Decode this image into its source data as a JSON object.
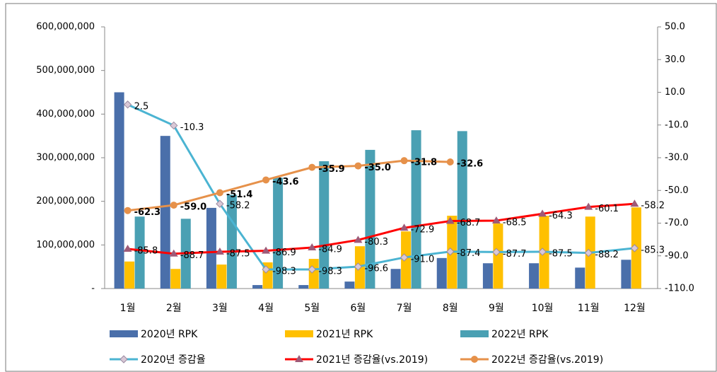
{
  "chart_data": {
    "type": "combo",
    "categories": [
      "1월",
      "2월",
      "3월",
      "4월",
      "5월",
      "6월",
      "7월",
      "8월",
      "9월",
      "10월",
      "11월",
      "12월"
    ],
    "ylim": [
      0,
      600000000
    ],
    "yticks": [
      {
        "value": 0,
        "label": "-"
      },
      {
        "value": 100000000,
        "label": "100,000,000"
      },
      {
        "value": 200000000,
        "label": "200,000,000"
      },
      {
        "value": 300000000,
        "label": "300,000,000"
      },
      {
        "value": 400000000,
        "label": "400,000,000"
      },
      {
        "value": 500000000,
        "label": "500,000,000"
      },
      {
        "value": 600000000,
        "label": "600,000,000"
      }
    ],
    "y2lim": [
      -110,
      50
    ],
    "y2ticks": [
      {
        "value": -110,
        "label": "-110.0"
      },
      {
        "value": -90,
        "label": "-90.0"
      },
      {
        "value": -70,
        "label": "-70.0"
      },
      {
        "value": -50,
        "label": "-50.0"
      },
      {
        "value": -30,
        "label": "-30.0"
      },
      {
        "value": -10,
        "label": "-10.0"
      },
      {
        "value": 10,
        "label": "10.0"
      },
      {
        "value": 30,
        "label": "30.0"
      },
      {
        "value": 50,
        "label": "50.0"
      }
    ],
    "grid": false,
    "legend": "bottom",
    "series": [
      {
        "name": "2020년 RPK",
        "type": "bar",
        "color": "#4a6faa",
        "values": [
          450000000,
          350000000,
          185000000,
          8000000,
          8000000,
          16000000,
          45000000,
          70000000,
          58000000,
          58000000,
          48000000,
          66000000
        ]
      },
      {
        "name": "2021년 RPK",
        "type": "bar",
        "color": "#ffc000",
        "values": [
          62000000,
          45000000,
          55000000,
          60000000,
          68000000,
          97000000,
          131000000,
          167000000,
          149000000,
          167000000,
          165000000,
          186000000
        ]
      },
      {
        "name": "2022년 RPK",
        "type": "bar",
        "color": "#4aa0b3",
        "values": [
          165000000,
          160000000,
          215000000,
          254000000,
          292000000,
          318000000,
          363000000,
          361000000,
          null,
          null,
          null,
          null
        ]
      },
      {
        "name": "2020년 증감율",
        "type": "line",
        "axis": "y2",
        "color": "#4bb4d2",
        "marker": "diamond",
        "marker_color": "#d9c8d6",
        "values": [
          2.5,
          -10.3,
          -58.2,
          -98.3,
          -98.3,
          -96.6,
          -91.0,
          -87.4,
          -87.7,
          -87.5,
          -88.2,
          -85.3
        ],
        "value_labels": [
          "2.5",
          "-10.3",
          "-58.2",
          "-98.3",
          "-98.3",
          "-96.6",
          "-91.0",
          "-87.4",
          "-87.7",
          "-87.5",
          "-88.2",
          "-85.3"
        ]
      },
      {
        "name": "2021년 증감율(vs.2019)",
        "type": "line",
        "axis": "y2",
        "color": "#ff0000",
        "marker": "triangle",
        "marker_color": "#9e5a78",
        "values": [
          -85.8,
          -88.7,
          -87.5,
          -86.9,
          -84.9,
          -80.3,
          -72.9,
          -68.7,
          -68.5,
          -64.3,
          -60.1,
          -58.2
        ],
        "value_labels": [
          "-85.8",
          "-88.7",
          "-87.5",
          "-86.9",
          "-84.9",
          "-80.3",
          "-72.9",
          "-68.7",
          "-68.5",
          "-64.3",
          "-60.1",
          "-58.2"
        ]
      },
      {
        "name": "2022년 증감율(vs.2019)",
        "type": "line",
        "axis": "y2",
        "color": "#e6914a",
        "marker": "circle",
        "marker_color": "#e6914a",
        "label_weight": "bold",
        "values": [
          -62.3,
          -59.0,
          -51.4,
          -43.6,
          -35.9,
          -35.0,
          -31.8,
          -32.6,
          null,
          null,
          null,
          null
        ],
        "value_labels": [
          "-62.3",
          "-59.0",
          "-51.4",
          "-43.6",
          "-35.9",
          "-35.0",
          "-31.8",
          "-32.6",
          null,
          null,
          null,
          null
        ]
      }
    ]
  }
}
